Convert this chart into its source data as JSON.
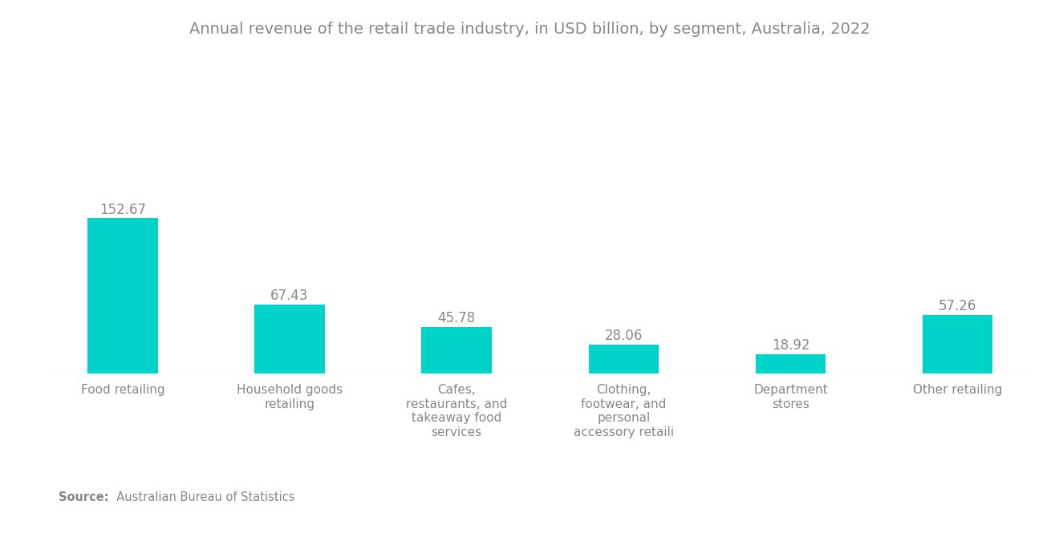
{
  "title": "Annual revenue of the retail trade industry, in USD billion, by segment, Australia, 2022",
  "categories": [
    "Food retailing",
    "Household goods\nretailing",
    "Cafes,\nrestaurants, and\ntakeaway food\nservices",
    "Clothing,\nfootwear, and\npersonal\naccessory retaili",
    "Department\nstores",
    "Other retailing"
  ],
  "values": [
    152.67,
    67.43,
    45.78,
    28.06,
    18.92,
    57.26
  ],
  "bar_color": "#00D4C8",
  "background_color": "#FFFFFF",
  "title_color": "#888888",
  "label_color": "#888888",
  "value_color": "#888888",
  "source_bold": "Source:",
  "source_rest": "  Australian Bureau of Statistics",
  "title_fontsize": 14,
  "value_fontsize": 12,
  "xlabel_fontsize": 11,
  "source_fontsize": 10.5
}
